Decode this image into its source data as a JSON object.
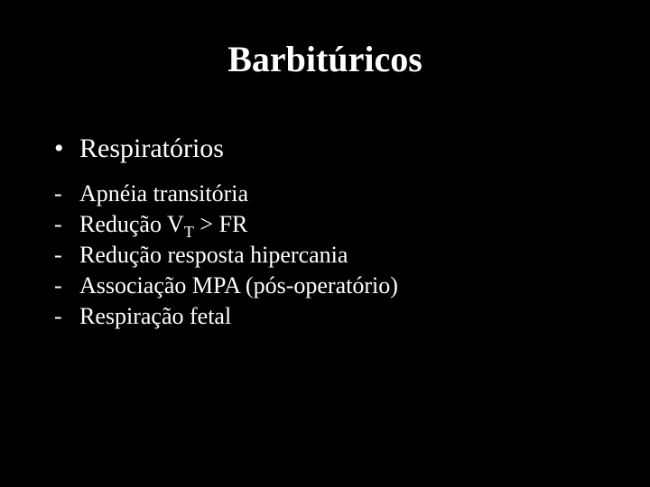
{
  "title": {
    "text": "Barbitúricos",
    "fontsize": 40,
    "color": "#ffffff",
    "weight": "bold"
  },
  "background_color": "#000000",
  "text_color": "#ffffff",
  "level1": {
    "bullet": "•",
    "fontsize": 30,
    "items": [
      {
        "text": "Respiratórios"
      }
    ]
  },
  "level2": {
    "bullet": "-",
    "fontsize": 26,
    "items": [
      {
        "text": "Apnéia transitória"
      },
      {
        "pre": "Redução V",
        "sub": "T",
        "post": " > FR"
      },
      {
        "text": "Redução resposta hipercania"
      },
      {
        "text": "Associação MPA (pós-operatório)"
      },
      {
        "text": "Respiração fetal"
      }
    ]
  }
}
